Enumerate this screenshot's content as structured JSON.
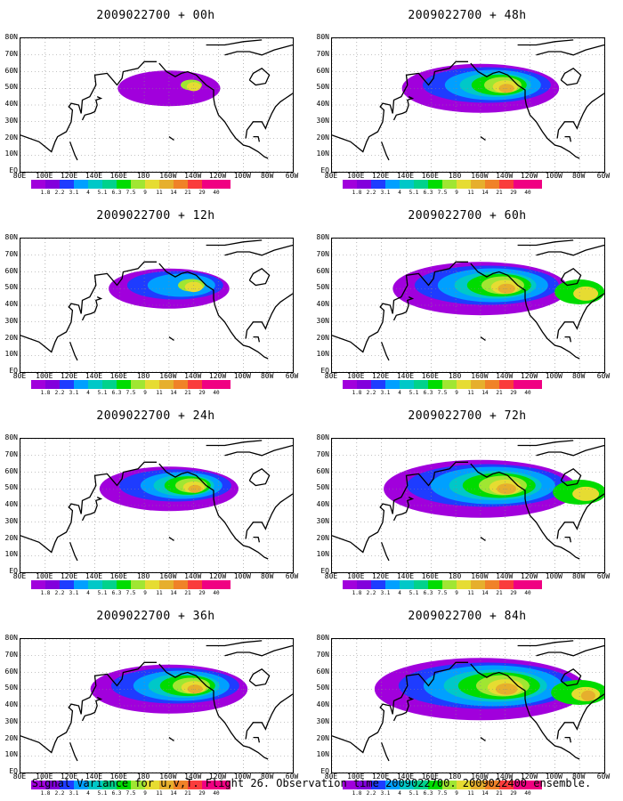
{
  "panels": [
    {
      "title": "2009022700 + 00h",
      "level": 0
    },
    {
      "title": "2009022700 + 48h",
      "level": 3
    },
    {
      "title": "2009022700 + 12h",
      "level": 1
    },
    {
      "title": "2009022700 + 60h",
      "level": 4
    },
    {
      "title": "2009022700 + 24h",
      "level": 2
    },
    {
      "title": "2009022700 + 72h",
      "level": 5
    },
    {
      "title": "2009022700 + 36h",
      "level": 3
    },
    {
      "title": "2009022700 + 84h",
      "level": 6
    }
  ],
  "lat_labels": [
    "80N",
    "70N",
    "60N",
    "50N",
    "40N",
    "30N",
    "20N",
    "10N",
    "EQ"
  ],
  "lon_labels": [
    "80E",
    "100E",
    "120E",
    "140E",
    "160E",
    "180",
    "160W",
    "140W",
    "120W",
    "100W",
    "80W",
    "60W"
  ],
  "colorbar": {
    "colors": [
      "#a100dc",
      "#8200dc",
      "#1e3cff",
      "#00a0ff",
      "#00c8c8",
      "#00d28c",
      "#00dc00",
      "#a0e632",
      "#e6dc32",
      "#e6af2d",
      "#f08228",
      "#fa3c3c",
      "#f00082"
    ],
    "labels": [
      "1.8",
      "2.2",
      "3.1",
      "4",
      "5.1",
      "6.3",
      "7.5",
      "9",
      "11",
      "14",
      "21",
      "29",
      "40"
    ]
  },
  "footer": "Signal Variance for u,v,T. Flight 26. Observation time 2009022700. 2009022400 ensemble."
}
